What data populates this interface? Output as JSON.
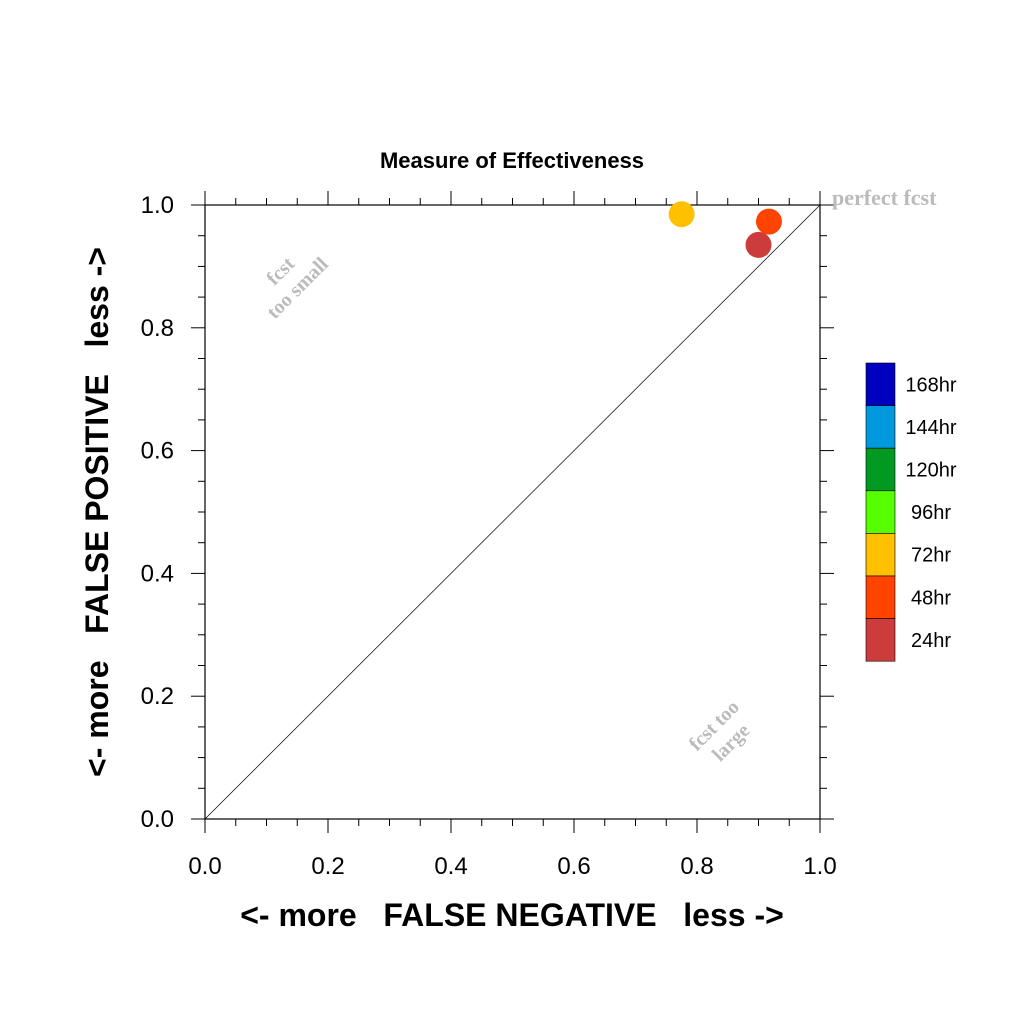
{
  "chart_data": {
    "type": "scatter",
    "title": "Measure of Effectiveness",
    "xlabel": "<- more   FALSE NEGATIVE   less ->",
    "ylabel": "<- more   FALSE POSITIVE   less ->",
    "xlim": [
      0.0,
      1.0
    ],
    "ylim": [
      0.0,
      1.0
    ],
    "xticks": [
      "0.0",
      "0.2",
      "0.4",
      "0.6",
      "0.8",
      "1.0"
    ],
    "yticks": [
      "0.0",
      "0.2",
      "0.4",
      "0.6",
      "0.8",
      "1.0"
    ],
    "grid": false,
    "diagonal_reference_line": true,
    "annotations": {
      "perfect": "perfect fcst",
      "too_small": [
        "fcst",
        "too small"
      ],
      "too_large": [
        "fcst too",
        "large"
      ]
    },
    "legend": {
      "placement": "right",
      "entries": [
        {
          "label": "168hr",
          "color": "#0000c0"
        },
        {
          "label": "144hr",
          "color": "#0099dd"
        },
        {
          "label": "120hr",
          "color": "#009922"
        },
        {
          "label": "96hr",
          "color": "#55ff00"
        },
        {
          "label": "72hr",
          "color": "#ffc000"
        },
        {
          "label": "48hr",
          "color": "#ff4400"
        },
        {
          "label": "24hr",
          "color": "#cc3c3c"
        }
      ]
    },
    "series": [
      {
        "name": "72hr",
        "color": "#ffc000",
        "x": [
          0.775
        ],
        "y": [
          0.985
        ]
      },
      {
        "name": "48hr",
        "color": "#ff4400",
        "x": [
          0.917
        ],
        "y": [
          0.973
        ]
      },
      {
        "name": "24hr",
        "color": "#cc3c3c",
        "x": [
          0.9
        ],
        "y": [
          0.935
        ]
      }
    ]
  }
}
